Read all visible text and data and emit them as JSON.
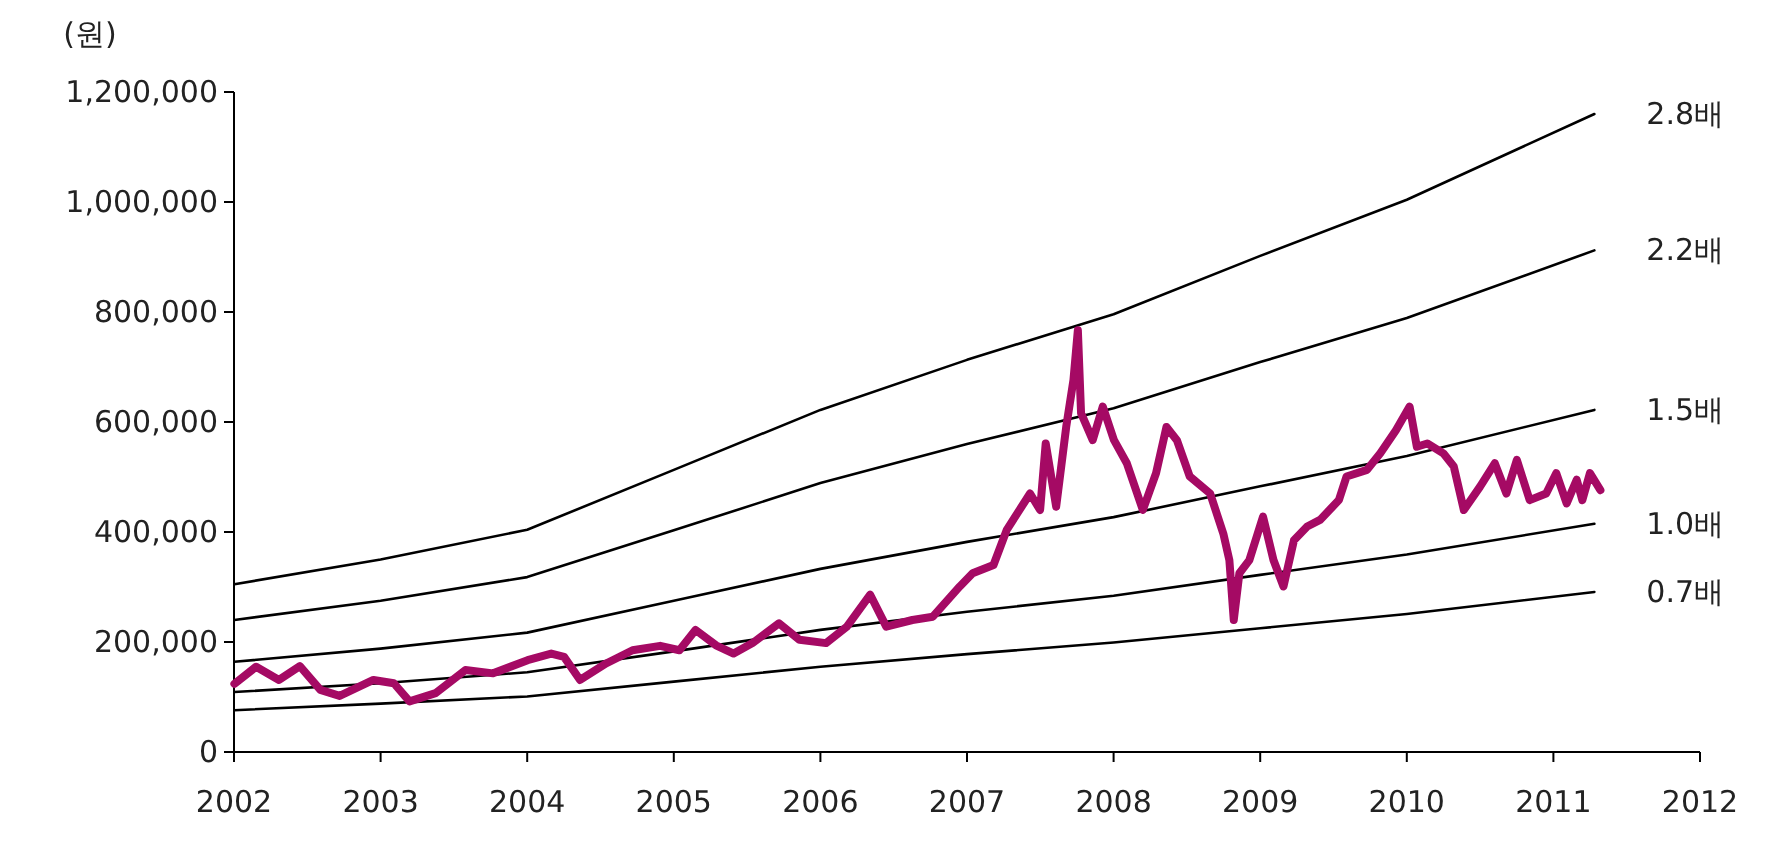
{
  "chart_data": {
    "type": "line",
    "ylabel": "(원)",
    "xlim": [
      "2002",
      "2012"
    ],
    "xticks": [
      "2002",
      "2003",
      "2004",
      "2005",
      "2006",
      "2007",
      "2008",
      "2009",
      "2010",
      "2011",
      "2012"
    ],
    "ylim": [
      0,
      1200000
    ],
    "yticks": [
      0,
      {
        "value": 200000,
        "label": "200,000"
      },
      {
        "value": 400000,
        "label": "400,000"
      },
      {
        "value": 600000,
        "label": "600,000"
      },
      {
        "value": 800000,
        "label": "800,000"
      },
      {
        "value": 1000000,
        "label": "1,000,000"
      },
      {
        "value": 1200000,
        "label": "1,200,000"
      }
    ],
    "grid": false,
    "series": [
      {
        "color": "#a50a64",
        "x": [
          "2002-01-02",
          "2002-02-25",
          "2002-04-23",
          "2002-06-14",
          "2002-08-04",
          "2002-09-21",
          "2002-12-14",
          "2003-02-03",
          "2003-03-14",
          "2003-05-18",
          "2003-07-31",
          "2003-10-08",
          "2004-01-02",
          "2004-03-01",
          "2004-04-02",
          "2004-05-12",
          "2004-07-16",
          "2004-09-20",
          "2004-11-28",
          "2005-01-15",
          "2005-02-24",
          "2005-04-16",
          "2005-05-30",
          "2005-07-16",
          "2005-09-20",
          "2005-11-10",
          "2006-01-15",
          "2006-03-08",
          "2006-05-05",
          "2006-06-14",
          "2006-08-18",
          "2006-10-08",
          "2006-12-14",
          "2007-01-15",
          "2007-03-08",
          "2007-04-10",
          "2007-06-07",
          "2007-07-02",
          "2007-07-16",
          "2007-08-11",
          "2007-09-05",
          "2007-09-23",
          "2007-10-04",
          "2007-10-12",
          "2007-11-10",
          "2007-12-05",
          "2008-01-02",
          "2008-02-03",
          "2008-03-14",
          "2008-04-16",
          "2008-05-12",
          "2008-06-07",
          "2008-07-09",
          "2008-08-29",
          "2008-10-01",
          "2008-10-16",
          "2008-10-27",
          "2008-11-10",
          "2008-12-05",
          "2009-01-08",
          "2009-02-03",
          "2009-02-28",
          "2009-03-26",
          "2009-04-28",
          "2009-05-30",
          "2009-07-16",
          "2009-08-04",
          "2009-09-24",
          "2009-10-27",
          "2009-12-05",
          "2010-01-08",
          "2010-01-26",
          "2010-02-21",
          "2010-04-02",
          "2010-04-28",
          "2010-05-23",
          "2010-07-02",
          "2010-08-08",
          "2010-09-06",
          "2010-10-02",
          "2010-11-03",
          "2010-12-14",
          "2011-01-08",
          "2011-02-03",
          "2011-02-28",
          "2011-03-14",
          "2011-04-02",
          "2011-04-28"
        ],
        "values": [
          124000,
          155000,
          131000,
          156000,
          113000,
          102000,
          131000,
          125000,
          92000,
          107000,
          149000,
          143000,
          167000,
          179000,
          173000,
          131000,
          161000,
          185000,
          193000,
          185000,
          222000,
          194000,
          179000,
          198000,
          234000,
          204000,
          198000,
          228000,
          286000,
          228000,
          240000,
          246000,
          301000,
          325000,
          340000,
          404000,
          470000,
          440000,
          561000,
          446000,
          591000,
          676000,
          767000,
          616000,
          567000,
          628000,
          567000,
          525000,
          440000,
          507000,
          591000,
          567000,
          501000,
          470000,
          397000,
          349000,
          240000,
          325000,
          349000,
          428000,
          349000,
          301000,
          385000,
          410000,
          422000,
          458000,
          501000,
          513000,
          543000,
          585000,
          628000,
          555000,
          561000,
          543000,
          519000,
          440000,
          482000,
          525000,
          470000,
          531000,
          458000,
          470000,
          507000,
          452000,
          495000,
          458000,
          507000,
          476000
        ]
      },
      {
        "name": "2.8배",
        "color": "#000000",
        "x": [
          "2002-01-02",
          "2003-01-01",
          "2004-01-01",
          "2005-01-01",
          "2006-01-01",
          "2007-01-01",
          "2008-01-01",
          "2009-01-01",
          "2010-01-01",
          "2011-04-13"
        ],
        "values": [
          305000,
          350000,
          404000,
          513000,
          622000,
          713000,
          796000,
          902000,
          1004000,
          1160000
        ]
      },
      {
        "name": "2.2배",
        "color": "#000000",
        "x": [
          "2002-01-02",
          "2003-01-01",
          "2004-01-01",
          "2005-01-01",
          "2006-01-01",
          "2007-01-01",
          "2008-01-01",
          "2009-01-01",
          "2010-01-01",
          "2011-04-13"
        ],
        "values": [
          240000,
          275000,
          318000,
          403000,
          489000,
          560000,
          625000,
          709000,
          789000,
          912000
        ]
      },
      {
        "name": "1.5배",
        "color": "#000000",
        "x": [
          "2002-01-02",
          "2003-01-01",
          "2004-01-01",
          "2005-01-01",
          "2006-01-01",
          "2007-01-01",
          "2008-01-01",
          "2009-01-01",
          "2010-01-01",
          "2011-04-13"
        ],
        "values": [
          164000,
          188000,
          217000,
          275000,
          333000,
          382000,
          427000,
          483000,
          538000,
          622000
        ]
      },
      {
        "name": "1.0배",
        "color": "#000000",
        "x": [
          "2002-01-02",
          "2003-01-01",
          "2004-01-01",
          "2005-01-01",
          "2006-01-01",
          "2007-01-01",
          "2008-01-01",
          "2009-01-01",
          "2010-01-01",
          "2011-04-13"
        ],
        "values": [
          109000,
          125000,
          145000,
          183000,
          222000,
          255000,
          284000,
          322000,
          359000,
          415000
        ]
      },
      {
        "name": "0.7배",
        "color": "#000000",
        "x": [
          "2002-01-02",
          "2003-01-01",
          "2004-01-01",
          "2005-01-01",
          "2006-01-01",
          "2007-01-01",
          "2008-01-01",
          "2009-01-01",
          "2010-01-01",
          "2011-04-13"
        ],
        "values": [
          76000,
          88000,
          101000,
          128000,
          155000,
          178000,
          199000,
          225000,
          251000,
          291000
        ]
      }
    ]
  }
}
